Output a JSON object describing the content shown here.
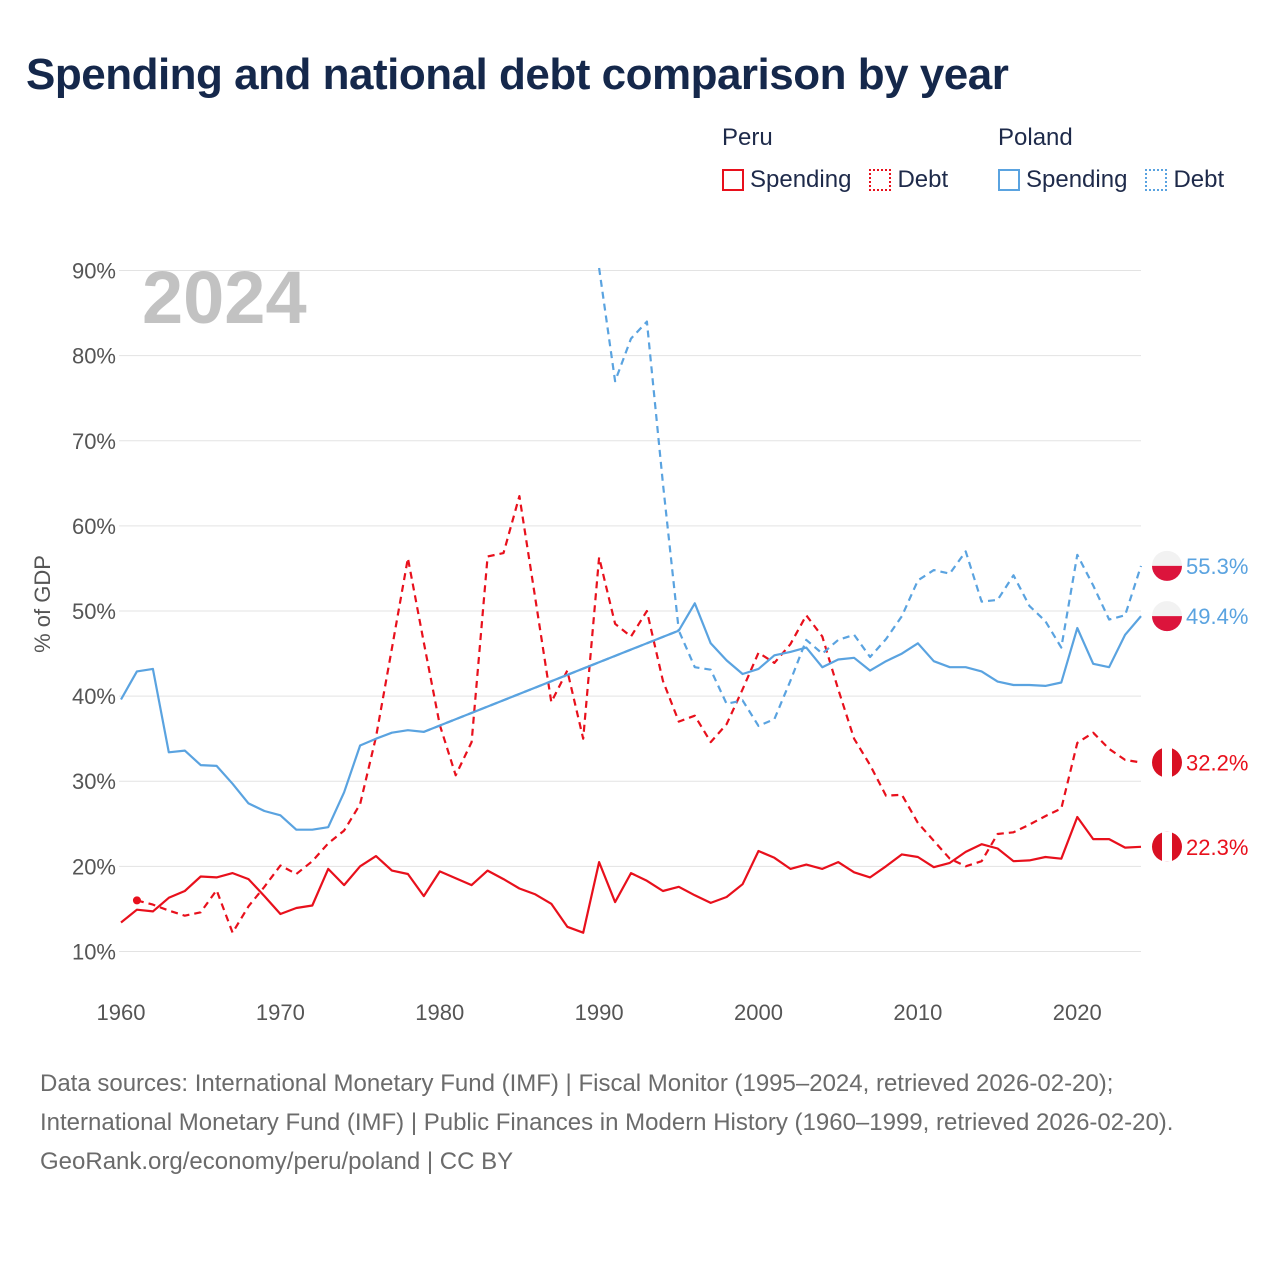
{
  "title": "Spending and national debt comparison by year",
  "colors": {
    "peru": "#e8101c",
    "poland": "#5aa3e0",
    "grid": "#e3e3e3",
    "year_watermark": "#c2c2c2"
  },
  "legend": {
    "peru": {
      "country": "Peru",
      "spending_label": "Spending",
      "debt_label": "Debt"
    },
    "poland": {
      "country": "Poland",
      "spending_label": "Spending",
      "debt_label": "Debt"
    }
  },
  "chart_data": {
    "type": "line",
    "title": "Spending and national debt comparison by year",
    "year_label": "2024",
    "ylabel": "% of GDP",
    "xlabel": "",
    "xlim": [
      1960,
      2024
    ],
    "ylim": [
      5,
      95
    ],
    "y_ticks": [
      10,
      20,
      30,
      40,
      50,
      60,
      70,
      80,
      90
    ],
    "y_tick_labels": [
      "10%",
      "20%",
      "30%",
      "40%",
      "50%",
      "60%",
      "70%",
      "80%",
      "90%"
    ],
    "x_ticks": [
      1960,
      1970,
      1980,
      1990,
      2000,
      2010,
      2020
    ],
    "x_tick_labels": [
      "1960",
      "1970",
      "1980",
      "1990",
      "2000",
      "2010",
      "2020"
    ],
    "grid": true,
    "series": [
      {
        "name": "Peru Spending",
        "country": "Peru",
        "kind": "spending",
        "color": "#e8101c",
        "dashed": false,
        "end_label": "22.3%",
        "x": [
          1960,
          1961,
          1962,
          1963,
          1964,
          1965,
          1966,
          1967,
          1968,
          1969,
          1970,
          1971,
          1972,
          1973,
          1974,
          1975,
          1976,
          1977,
          1978,
          1979,
          1980,
          1981,
          1982,
          1983,
          1984,
          1985,
          1986,
          1987,
          1988,
          1989,
          1990,
          1991,
          1992,
          1993,
          1994,
          1995,
          1996,
          1997,
          1998,
          1999,
          2000,
          2001,
          2002,
          2003,
          2004,
          2005,
          2006,
          2007,
          2008,
          2009,
          2010,
          2011,
          2012,
          2013,
          2014,
          2015,
          2016,
          2017,
          2018,
          2019,
          2020,
          2021,
          2022,
          2023,
          2024
        ],
        "y": [
          13.4,
          14.9,
          14.7,
          16.3,
          17.1,
          18.8,
          18.7,
          19.2,
          18.5,
          16.5,
          14.4,
          15.1,
          15.4,
          19.7,
          17.8,
          20,
          21.2,
          19.5,
          19.1,
          16.5,
          19.4,
          18.6,
          17.8,
          19.5,
          18.5,
          17.4,
          16.7,
          15.6,
          12.9,
          12.2,
          20.5,
          15.8,
          19.2,
          18.3,
          17.1,
          17.6,
          16.6,
          15.7,
          16.4,
          17.9,
          21.8,
          21,
          19.7,
          20.2,
          19.7,
          20.5,
          19.3,
          18.7,
          20,
          21.4,
          21.1,
          19.9,
          20.4,
          21.7,
          22.6,
          22.1,
          20.6,
          20.7,
          21.1,
          20.9,
          25.8,
          23.2,
          23.2,
          22.2,
          22.3
        ]
      },
      {
        "name": "Peru Debt",
        "country": "Peru",
        "kind": "debt",
        "color": "#e8101c",
        "dashed": true,
        "end_label": "32.2%",
        "x": [
          1961,
          1962,
          1963,
          1964,
          1965,
          1966,
          1967,
          1968,
          1969,
          1970,
          1971,
          1972,
          1973,
          1974,
          1975,
          1976,
          1977,
          1978,
          1979,
          1980,
          1981,
          1982,
          1983,
          1984,
          1985,
          1986,
          1987,
          1988,
          1989,
          1990,
          1991,
          1992,
          1993,
          1994,
          1995,
          1996,
          1997,
          1998,
          1999,
          2000,
          2001,
          2002,
          2003,
          2004,
          2005,
          2006,
          2007,
          2008,
          2009,
          2010,
          2011,
          2012,
          2013,
          2014,
          2015,
          2016,
          2017,
          2018,
          2019,
          2020,
          2021,
          2022,
          2023,
          2024
        ],
        "y": [
          16,
          15.5,
          14.8,
          14.2,
          14.6,
          17.2,
          12.2,
          15.3,
          17.6,
          20.1,
          19.1,
          20.6,
          22.7,
          24.2,
          27.3,
          35.2,
          45.6,
          56.2,
          46.3,
          36.6,
          30.7,
          34.6,
          56.4,
          56.8,
          63.5,
          51.4,
          39.3,
          43,
          35,
          56.3,
          48.5,
          47,
          50,
          41.8,
          37,
          37.7,
          34.6,
          36.7,
          40.8,
          45.1,
          43.9,
          46.1,
          49.5,
          47,
          40.8,
          35,
          31.9,
          28.3,
          28.4,
          25.1,
          23,
          20.9,
          20,
          20.6,
          23.8,
          24,
          24.9,
          25.9,
          26.8,
          34.5,
          35.7,
          33.8,
          32.5,
          32.2
        ]
      },
      {
        "name": "Poland Spending",
        "country": "Poland",
        "kind": "spending",
        "color": "#5aa3e0",
        "dashed": false,
        "end_label": "49.4%",
        "x": [
          1960,
          1961,
          1962,
          1963,
          1964,
          1965,
          1966,
          1967,
          1968,
          1969,
          1970,
          1971,
          1972,
          1973,
          1974,
          1975,
          1976,
          1977,
          1978,
          1979,
          1995,
          1996,
          1997,
          1998,
          1999,
          2000,
          2001,
          2002,
          2003,
          2004,
          2005,
          2006,
          2007,
          2008,
          2009,
          2010,
          2011,
          2012,
          2013,
          2014,
          2015,
          2016,
          2017,
          2018,
          2019,
          2020,
          2021,
          2022,
          2023,
          2024
        ],
        "y": [
          39.6,
          42.9,
          43.2,
          33.4,
          33.6,
          31.9,
          31.8,
          29.7,
          27.4,
          26.5,
          26,
          24.3,
          24.3,
          24.6,
          28.7,
          34.2,
          35,
          35.7,
          36,
          35.8,
          47.7,
          50.9,
          46.2,
          44.2,
          42.6,
          43.2,
          44.8,
          45.2,
          45.7,
          43.4,
          44.3,
          44.5,
          43,
          44.1,
          45,
          46.2,
          44.1,
          43.4,
          43.4,
          42.9,
          41.7,
          41.3,
          41.3,
          41.2,
          41.6,
          48,
          43.8,
          43.4,
          47.2,
          49.4
        ]
      },
      {
        "name": "Poland Debt",
        "country": "Poland",
        "kind": "debt",
        "color": "#5aa3e0",
        "dashed": true,
        "end_label": "55.3%",
        "x": [
          1979,
          1995,
          1996,
          1997,
          1998,
          1999,
          2000,
          2001,
          2002,
          2003,
          2004,
          2005,
          2006,
          2007,
          2008,
          2009,
          2010,
          2011,
          2012,
          2013,
          2014,
          2015,
          2016,
          2017,
          2018,
          2019,
          2020,
          2021,
          2022,
          2023,
          2024
        ],
        "y": [
          35.8,
          47.7,
          43.4,
          43.1,
          39.1,
          39.5,
          36.5,
          37.3,
          41.8,
          46.6,
          45,
          46.6,
          47.2,
          44.6,
          46.7,
          49.4,
          53.6,
          54.8,
          54.4,
          57,
          51.1,
          51.3,
          54.2,
          50.6,
          48.8,
          45.7,
          56.6,
          53,
          49,
          49.5,
          55.3
        ]
      },
      {
        "name": "Poland Debt (early 1990s)",
        "country": "Poland",
        "kind": "debt",
        "color": "#5aa3e0",
        "dashed": true,
        "x": [
          1990,
          1991,
          1992,
          1993,
          1994,
          1995
        ],
        "y": [
          90.5,
          77,
          82,
          84,
          65,
          47.7
        ]
      }
    ]
  },
  "footer": {
    "sources": "Data sources: International Monetary Fund (IMF) | Fiscal Monitor (1995–2024, retrieved 2026-02-20); International Monetary Fund (IMF) | Public Finances in Modern History (1960–1999, retrieved 2026-02-20).",
    "credit": "GeoRank.org/economy/peru/poland | CC BY"
  }
}
